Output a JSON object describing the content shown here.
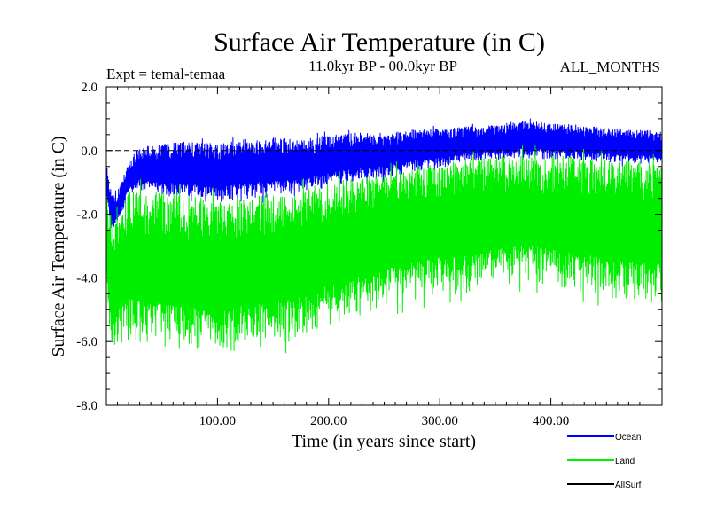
{
  "chart_data": {
    "type": "line",
    "title": "Surface Air Temperature (in C)",
    "subtitle_left": "Expt = temal-temaa",
    "subtitle_center": "11.0kyr BP - 00.0kyr BP",
    "subtitle_right": "ALL_MONTHS",
    "xlabel": "Time (in years since start)",
    "ylabel": "Surface Air Temperature (in C)",
    "xlim": [
      0,
      500
    ],
    "ylim": [
      -8.0,
      2.0
    ],
    "x_ticks": [
      100,
      200,
      300,
      400
    ],
    "x_tick_labels": [
      "100.00",
      "200.00",
      "300.00",
      "400.00"
    ],
    "y_ticks": [
      -8,
      -6,
      -4,
      -2,
      0,
      2
    ],
    "y_tick_labels": [
      "-8.0",
      "-6.0",
      "-4.0",
      "-2.0",
      "0.0",
      "2.0"
    ],
    "zero_line": true,
    "legend_position": "bottom-right",
    "series": [
      {
        "name": "Ocean",
        "color": "#0000ff",
        "envelope": {
          "x": [
            0,
            5,
            10,
            20,
            30,
            50,
            75,
            100,
            125,
            150,
            175,
            200,
            225,
            250,
            275,
            300,
            325,
            350,
            375,
            400,
            425,
            450,
            475,
            500
          ],
          "upper": [
            -0.4,
            -1.4,
            -1.3,
            -0.3,
            0.1,
            0.2,
            0.3,
            0.2,
            0.35,
            0.4,
            0.35,
            0.5,
            0.55,
            0.55,
            0.65,
            0.7,
            0.75,
            0.8,
            0.95,
            0.85,
            0.8,
            0.7,
            0.65,
            0.6
          ],
          "lower": [
            -1.6,
            -2.7,
            -2.4,
            -1.5,
            -1.3,
            -1.5,
            -1.6,
            -1.7,
            -1.6,
            -1.5,
            -1.4,
            -1.2,
            -1.0,
            -0.9,
            -0.7,
            -0.6,
            -0.4,
            -0.35,
            -0.3,
            -0.3,
            -0.35,
            -0.4,
            -0.45,
            -0.5
          ]
        }
      },
      {
        "name": "Land",
        "color": "#00ee00",
        "envelope": {
          "x": [
            0,
            5,
            10,
            20,
            30,
            50,
            75,
            100,
            125,
            150,
            175,
            200,
            225,
            250,
            275,
            300,
            325,
            350,
            375,
            400,
            425,
            450,
            475,
            500
          ],
          "upper": [
            -1.2,
            -2.2,
            -2.0,
            -1.3,
            -1.2,
            -1.3,
            -1.4,
            -1.5,
            -1.4,
            -1.35,
            -1.2,
            -1.0,
            -0.85,
            -0.7,
            -0.5,
            -0.4,
            -0.3,
            -0.2,
            -0.1,
            -0.1,
            -0.2,
            -0.3,
            -0.35,
            -0.4
          ],
          "lower": [
            -4.8,
            -6.7,
            -6.2,
            -6.0,
            -6.2,
            -6.3,
            -6.4,
            -6.6,
            -6.3,
            -6.2,
            -6.0,
            -5.6,
            -5.3,
            -5.0,
            -4.8,
            -4.6,
            -4.5,
            -4.3,
            -4.2,
            -4.3,
            -4.5,
            -4.7,
            -4.8,
            -4.9
          ]
        }
      },
      {
        "name": "AllSurf",
        "color": "#000000"
      }
    ]
  }
}
